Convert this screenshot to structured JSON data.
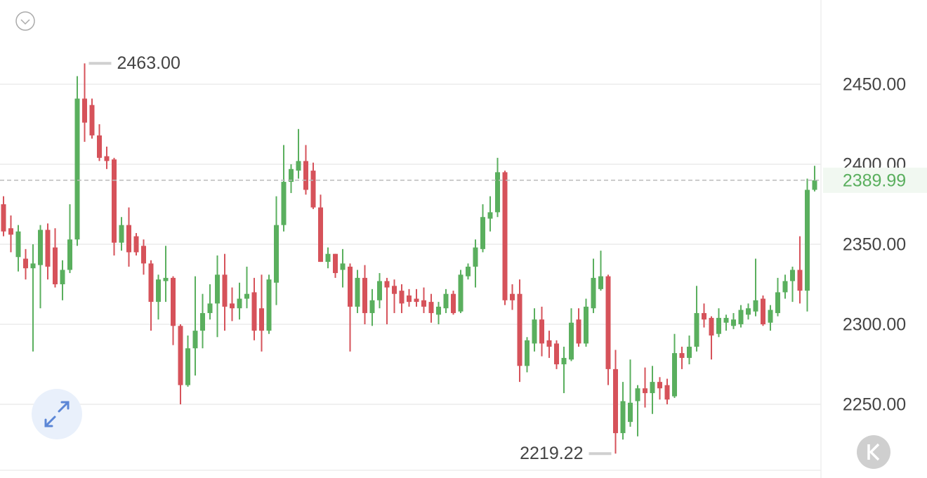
{
  "chart_data": {
    "type": "candlestick",
    "up_color": "#5aaf5e",
    "down_color": "#d6525a",
    "open": [
      2375,
      2360,
      2342,
      2341,
      2335,
      2337,
      2359,
      2348,
      2325,
      2334,
      2353,
      2441,
      2437,
      2418,
      2405,
      2403,
      2351,
      2362,
      2355,
      2349,
      2338,
      2314,
      2327,
      2329,
      2299,
      2262,
      2285,
      2296,
      2307,
      2313,
      2331,
      2313,
      2310,
      2316,
      2320,
      2310,
      2296,
      2326,
      2362,
      2389,
      2396,
      2402,
      2396,
      2373,
      2339,
      2344,
      2334,
      2336,
      2311,
      2329,
      2307,
      2315,
      2327,
      2324,
      2321,
      2318,
      2316,
      2315,
      2314,
      2306,
      2310,
      2319,
      2308,
      2330,
      2336,
      2347,
      2366,
      2370,
      2395,
      2319,
      2319,
      2274,
      2288,
      2303,
      2290,
      2288,
      2275,
      2278,
      2303,
      2288,
      2310,
      2322,
      2330,
      2272,
      2232,
      2239,
      2252,
      2260,
      2257,
      2264,
      2262,
      2255,
      2282,
      2279,
      2286,
      2307,
      2304,
      2294,
      2301,
      2299,
      2300,
      2306,
      2308,
      2316,
      2301,
      2307,
      2320,
      2327,
      2334,
      2321,
      2384
    ],
    "high": [
      2380,
      2368,
      2362,
      2347,
      2350,
      2362,
      2363,
      2360,
      2340,
      2375,
      2455,
      2463,
      2441,
      2425,
      2411,
      2404,
      2367,
      2373,
      2357,
      2353,
      2340,
      2331,
      2349,
      2330,
      2300,
      2293,
      2330,
      2319,
      2325,
      2343,
      2344,
      2323,
      2326,
      2336,
      2329,
      2331,
      2331,
      2380,
      2412,
      2400,
      2422,
      2412,
      2401,
      2381,
      2348,
      2344,
      2347,
      2338,
      2334,
      2337,
      2322,
      2332,
      2329,
      2328,
      2325,
      2322,
      2322,
      2323,
      2319,
      2314,
      2322,
      2321,
      2334,
      2338,
      2353,
      2375,
      2380,
      2404,
      2396,
      2325,
      2328,
      2292,
      2310,
      2311,
      2296,
      2290,
      2286,
      2310,
      2310,
      2316,
      2341,
      2346,
      2331,
      2284,
      2264,
      2278,
      2262,
      2273,
      2274,
      2267,
      2266,
      2294,
      2286,
      2293,
      2324,
      2313,
      2305,
      2310,
      2306,
      2307,
      2312,
      2313,
      2341,
      2318,
      2312,
      2329,
      2331,
      2336,
      2355,
      2391,
      2399
    ],
    "low": [
      2355,
      2345,
      2333,
      2328,
      2283,
      2310,
      2328,
      2323,
      2315,
      2332,
      2349,
      2414,
      2416,
      2402,
      2397,
      2343,
      2346,
      2336,
      2343,
      2331,
      2296,
      2303,
      2314,
      2287,
      2250,
      2261,
      2268,
      2285,
      2303,
      2292,
      2296,
      2302,
      2303,
      2310,
      2290,
      2283,
      2294,
      2312,
      2358,
      2382,
      2391,
      2381,
      2372,
      2339,
      2335,
      2329,
      2323,
      2283,
      2307,
      2300,
      2299,
      2310,
      2300,
      2307,
      2307,
      2311,
      2311,
      2307,
      2301,
      2300,
      2307,
      2306,
      2307,
      2328,
      2323,
      2345,
      2358,
      2367,
      2312,
      2309,
      2264,
      2270,
      2283,
      2280,
      2279,
      2272,
      2257,
      2277,
      2286,
      2286,
      2307,
      2321,
      2262,
      2219.22,
      2228,
      2236,
      2230,
      2248,
      2244,
      2253,
      2250,
      2254,
      2272,
      2275,
      2283,
      2298,
      2278,
      2292,
      2296,
      2297,
      2298,
      2303,
      2305,
      2299,
      2296,
      2305,
      2316,
      2314,
      2313,
      2308,
      2383
    ],
    "close": [
      2358,
      2356,
      2358,
      2335,
      2338,
      2359,
      2336,
      2325,
      2334,
      2353,
      2441,
      2426,
      2418,
      2404,
      2402,
      2351,
      2362,
      2345,
      2345,
      2338,
      2314,
      2328,
      2329,
      2299,
      2262,
      2285,
      2296,
      2307,
      2313,
      2331,
      2311,
      2310,
      2316,
      2319,
      2296,
      2296,
      2328,
      2362,
      2389,
      2397,
      2402,
      2384,
      2373,
      2339,
      2344,
      2332,
      2338,
      2311,
      2329,
      2307,
      2315,
      2327,
      2323,
      2319,
      2313,
      2314,
      2314,
      2311,
      2307,
      2311,
      2319,
      2307,
      2331,
      2336,
      2348,
      2367,
      2370,
      2395,
      2315,
      2315,
      2274,
      2290,
      2303,
      2288,
      2286,
      2275,
      2279,
      2301,
      2288,
      2311,
      2329,
      2330,
      2272,
      2232,
      2252,
      2251,
      2260,
      2257,
      2264,
      2260,
      2253,
      2282,
      2279,
      2286,
      2307,
      2303,
      2293,
      2304,
      2304,
      2303,
      2309,
      2310,
      2315,
      2300,
      2309,
      2320,
      2327,
      2334,
      2321,
      2384,
      2389.99
    ],
    "ylim": [
      2208.8,
      2502.6
    ],
    "yticks": [
      {
        "value": 2250,
        "label": "2250.00"
      },
      {
        "value": 2300,
        "label": "2300.00"
      },
      {
        "value": 2350,
        "label": "2350.00"
      },
      {
        "value": 2400,
        "label": "2400.00"
      },
      {
        "value": 2450,
        "label": "2450.00"
      }
    ],
    "grid": true,
    "last_price": {
      "value": 2389.99,
      "label": "2389.99"
    },
    "max_annotation": {
      "value": 2463,
      "label": "2463.00"
    },
    "min_annotation": {
      "value": 2219.22,
      "label": "2219.22"
    }
  }
}
